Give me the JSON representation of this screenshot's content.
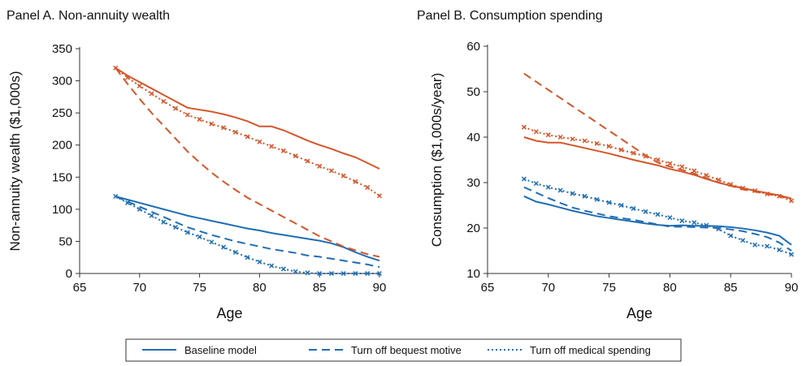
{
  "chart_data": [
    {
      "type": "line",
      "title": "Panel A. Non-annuity wealth",
      "xlabel": "Age",
      "ylabel": "Non-annuity wealth ($1,000s)",
      "x": [
        68,
        69,
        70,
        71,
        72,
        73,
        74,
        75,
        76,
        77,
        78,
        79,
        80,
        81,
        82,
        83,
        84,
        85,
        86,
        87,
        88,
        89,
        90
      ],
      "xlim": [
        65,
        90
      ],
      "xticks": [
        65,
        70,
        75,
        80,
        85,
        90
      ],
      "ylim": [
        0,
        350
      ],
      "yticks": [
        0,
        50,
        100,
        150,
        200,
        250,
        300,
        350
      ],
      "series": [
        {
          "name": "Baseline model",
          "color": "#1f6db3",
          "dash": "solid",
          "values": [
            120,
            115,
            110,
            105,
            100,
            95,
            90,
            86,
            82,
            78,
            74,
            70,
            67,
            63,
            60,
            57,
            54,
            51,
            47,
            41,
            33,
            26,
            20
          ]
        },
        {
          "name": "Turn off bequest motive",
          "color": "#1f6db3",
          "dash": "dashed",
          "values": [
            120,
            112,
            104,
            96,
            88,
            80,
            72,
            66,
            60,
            55,
            50,
            46,
            42,
            38,
            35,
            32,
            28,
            26,
            23,
            20,
            17,
            14,
            10
          ]
        },
        {
          "name": "Turn off medical spending",
          "color": "#1f6db3",
          "dash": "dotted",
          "values": [
            120,
            110,
            100,
            90,
            80,
            72,
            64,
            57,
            49,
            41,
            33,
            25,
            18,
            12,
            7,
            3,
            1,
            0,
            0,
            0,
            0,
            0,
            0
          ]
        },
        {
          "name": "Baseline model",
          "color": "#d4562a",
          "dash": "solid",
          "values": [
            320,
            308,
            298,
            288,
            278,
            268,
            258,
            255,
            252,
            248,
            243,
            237,
            229,
            229,
            223,
            215,
            207,
            200,
            194,
            187,
            181,
            172,
            163
          ]
        },
        {
          "name": "Turn off bequest motive",
          "color": "#d4562a",
          "dash": "dashed",
          "values": [
            320,
            295,
            272,
            250,
            230,
            210,
            190,
            173,
            157,
            143,
            130,
            118,
            108,
            98,
            88,
            78,
            68,
            58,
            50,
            42,
            36,
            30,
            26
          ]
        },
        {
          "name": "Turn off medical spending",
          "color": "#d4562a",
          "dash": "dotted",
          "values": [
            320,
            305,
            292,
            280,
            268,
            257,
            247,
            240,
            233,
            227,
            220,
            213,
            205,
            198,
            191,
            183,
            175,
            167,
            160,
            152,
            143,
            134,
            121
          ]
        }
      ]
    },
    {
      "type": "line",
      "title": "Panel B. Consumption spending",
      "xlabel": "Age",
      "ylabel": "Consumption ($1,000s/year)",
      "x": [
        68,
        69,
        70,
        71,
        72,
        73,
        74,
        75,
        76,
        77,
        78,
        79,
        80,
        81,
        82,
        83,
        84,
        85,
        86,
        87,
        88,
        89,
        90
      ],
      "xlim": [
        65,
        90
      ],
      "xticks": [
        65,
        70,
        75,
        80,
        85,
        90
      ],
      "ylim": [
        10,
        60
      ],
      "yticks": [
        10,
        20,
        30,
        40,
        50,
        60
      ],
      "series": [
        {
          "name": "Baseline model",
          "color": "#1f6db3",
          "dash": "solid",
          "values": [
            27,
            25.8,
            25.2,
            24.5,
            23.8,
            23.2,
            22.6,
            22.2,
            21.8,
            21.4,
            21,
            20.7,
            20.5,
            20.6,
            20.5,
            20.5,
            20.4,
            20.2,
            19.9,
            19.5,
            19,
            18.3,
            16.3
          ]
        },
        {
          "name": "Turn off bequest motive",
          "color": "#1f6db3",
          "dash": "dashed",
          "values": [
            29,
            27.8,
            26.6,
            25.5,
            24.5,
            23.8,
            23.2,
            22.6,
            22.2,
            21.8,
            21.3,
            20.8,
            20.3,
            20.3,
            20.2,
            20.1,
            20,
            19.7,
            19.3,
            18.7,
            18,
            16.8,
            15
          ]
        },
        {
          "name": "Turn off medical spending",
          "color": "#1f6db3",
          "dash": "dotted",
          "values": [
            30.8,
            29.8,
            29,
            28.3,
            27.6,
            27,
            26.3,
            25.6,
            25,
            24.3,
            23.6,
            23,
            22.3,
            21.6,
            21.2,
            20.6,
            19.8,
            18.3,
            17.3,
            16.3,
            16,
            15.2,
            14.2
          ]
        },
        {
          "name": "Baseline model",
          "color": "#d4562a",
          "dash": "solid",
          "values": [
            40,
            39.2,
            38.8,
            38.8,
            38.2,
            37.6,
            37,
            36.4,
            35.7,
            35,
            34.4,
            33.8,
            33,
            32.4,
            31.7,
            30.8,
            30,
            29.3,
            28.8,
            28.2,
            27.7,
            27.2,
            26.5
          ]
        },
        {
          "name": "Turn off bequest motive",
          "color": "#d4562a",
          "dash": "dashed",
          "values": [
            54,
            52.2,
            50.4,
            48.6,
            46.8,
            45,
            43.2,
            41.4,
            39.6,
            37.8,
            36,
            34.4,
            33.5,
            32.8,
            32,
            31,
            30,
            29.3,
            28.5,
            28,
            27.5,
            27,
            26.5
          ]
        },
        {
          "name": "Turn off medical spending",
          "color": "#d4562a",
          "dash": "dotted",
          "values": [
            42.2,
            41.2,
            40.5,
            40,
            39.6,
            39.2,
            38.6,
            38,
            37.2,
            36.5,
            35.8,
            35,
            34.2,
            33.5,
            32.6,
            31.6,
            30.6,
            29.6,
            28.8,
            28.2,
            27.5,
            27,
            26
          ]
        }
      ]
    }
  ]
}
